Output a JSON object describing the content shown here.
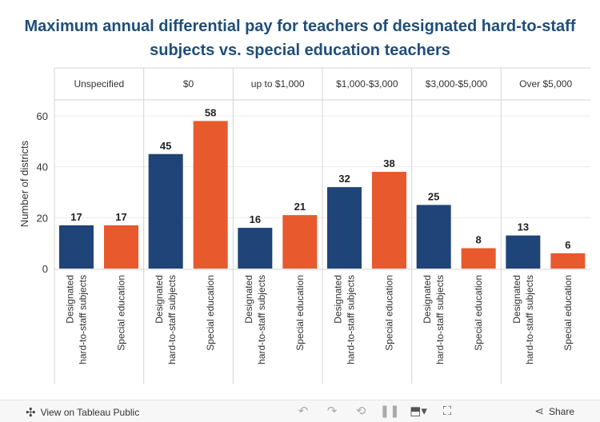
{
  "title_line1": "Maximum annual differential pay for teachers of designated hard-to-staff",
  "title_line2": "subjects vs. special education teachers",
  "colors": {
    "designated": "#1f4477",
    "special": "#e8592d",
    "title": "#1f4e79"
  },
  "chart_data": {
    "type": "bar",
    "ylabel": "Number of districts",
    "xlabel": "",
    "ylim": [
      0,
      65
    ],
    "yticks": [
      0,
      20,
      40,
      60
    ],
    "groups": [
      "Unspecified",
      "$0",
      "up to $1,000",
      "$1,000-$3,000",
      "$3,000-$5,000",
      "Over $5,000"
    ],
    "bar_labels": [
      [
        "Designated",
        "hard-to-staff subjects"
      ],
      [
        "Special education"
      ]
    ],
    "series": [
      {
        "key": "designated",
        "values": [
          17,
          45,
          16,
          32,
          25,
          13
        ]
      },
      {
        "key": "special",
        "values": [
          17,
          58,
          21,
          38,
          8,
          6
        ]
      }
    ]
  },
  "toolbar": {
    "view_label": "View on Tableau Public",
    "share_label": "Share",
    "icons": [
      "undo-icon",
      "redo-icon",
      "revert-icon",
      "pause-icon",
      "download-icon",
      "fullscreen-icon"
    ]
  }
}
